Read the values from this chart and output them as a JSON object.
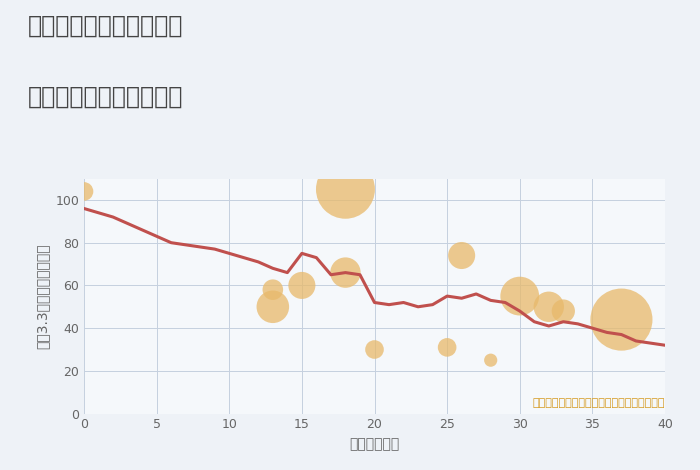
{
  "title_line1": "奈良県生駒市新生駒台の",
  "title_line2": "築年数別中古戸建て価格",
  "xlabel": "築年数（年）",
  "ylabel": "坪（3.3㎡）単価（万円）",
  "annotation": "円の大きさは、取引のあった物件面積を示す",
  "xlim": [
    0,
    40
  ],
  "ylim": [
    0,
    110
  ],
  "xticks": [
    0,
    5,
    10,
    15,
    20,
    25,
    30,
    35,
    40
  ],
  "yticks": [
    0,
    20,
    40,
    60,
    80,
    100
  ],
  "background_color": "#eef2f7",
  "plot_bg_color": "#f5f8fb",
  "line_color": "#c0504d",
  "line_width": 2.2,
  "line_x": [
    0,
    1,
    2,
    3,
    4,
    5,
    6,
    7,
    8,
    9,
    10,
    11,
    12,
    13,
    14,
    15,
    16,
    17,
    18,
    19,
    20,
    21,
    22,
    23,
    24,
    25,
    26,
    27,
    28,
    29,
    30,
    31,
    32,
    33,
    34,
    35,
    36,
    37,
    38,
    39,
    40
  ],
  "line_y": [
    96,
    94,
    92,
    89,
    86,
    83,
    80,
    79,
    78,
    77,
    75,
    73,
    71,
    68,
    66,
    75,
    73,
    65,
    66,
    65,
    52,
    51,
    52,
    50,
    51,
    55,
    54,
    56,
    53,
    52,
    48,
    43,
    41,
    43,
    42,
    40,
    38,
    37,
    34,
    33,
    32
  ],
  "scatter_x": [
    0,
    13,
    13,
    15,
    18,
    18,
    20,
    25,
    26,
    28,
    30,
    32,
    33,
    37
  ],
  "scatter_y": [
    104,
    50,
    58,
    60,
    105,
    66,
    30,
    31,
    74,
    25,
    55,
    50,
    48,
    44
  ],
  "scatter_size": [
    180,
    550,
    220,
    380,
    1800,
    480,
    180,
    180,
    380,
    90,
    780,
    480,
    280,
    2000
  ],
  "scatter_color": "#e8b96a",
  "scatter_alpha": 0.75,
  "grid_color": "#c5d0df",
  "title_color": "#444444",
  "title_fontsize": 17,
  "label_fontsize": 10,
  "tick_fontsize": 9,
  "annotation_color": "#d4981a",
  "annotation_fontsize": 8
}
